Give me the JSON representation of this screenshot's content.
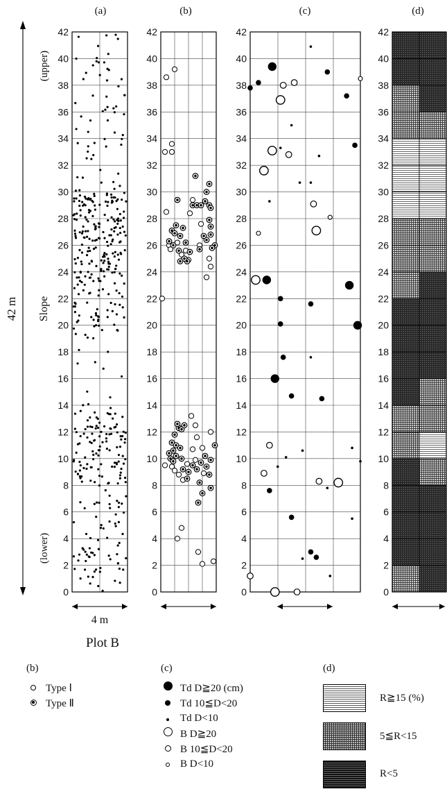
{
  "figure": {
    "panel_labels": [
      "(a)",
      "(b)",
      "(c)",
      "(d)"
    ],
    "axis_label": "Slope",
    "upper_label": "(upper)",
    "lower_label": "(lower)",
    "length_label": "42 m",
    "width_label": "4 m",
    "plot_label": "Plot B"
  },
  "legend_b": {
    "title": "(b)",
    "items": [
      {
        "symbol": "type-1",
        "label": "Type Ⅰ"
      },
      {
        "symbol": "type-2",
        "label": "Type Ⅱ"
      }
    ]
  },
  "legend_c": {
    "title": "(c)",
    "items": [
      {
        "symbol": "td-large",
        "label": "Td D≧20 (cm)"
      },
      {
        "symbol": "td-medium",
        "label": "Td 10≦D<20"
      },
      {
        "symbol": "td-small",
        "label": "Td D<10"
      },
      {
        "symbol": "b-large",
        "label": "B D≧20"
      },
      {
        "symbol": "b-medium",
        "label": "B 10≦D<20"
      },
      {
        "symbol": "b-small",
        "label": "B D<10"
      }
    ]
  },
  "legend_d": {
    "title": "(d)",
    "items": [
      {
        "pattern": "horizontal-lines",
        "label": "R≧15 (%)"
      },
      {
        "pattern": "fine-grid",
        "label": "5≦R<15"
      },
      {
        "pattern": "dense-dark",
        "label": "R<5"
      }
    ]
  },
  "chart_data": [
    {
      "panel": "(a)",
      "type": "scatter",
      "ylim": [
        0,
        42
      ],
      "xlim": [
        0,
        4
      ],
      "yticks": [
        "0",
        "2",
        "4",
        "6",
        "8",
        "10",
        "12",
        "14",
        "16",
        "18",
        "20",
        "22",
        "24",
        "26",
        "28",
        "30",
        "32",
        "34",
        "36",
        "38",
        "40",
        "42"
      ],
      "density_by_y_band": [
        {
          "y": [
            0,
            4
          ],
          "count": 40
        },
        {
          "y": [
            4,
            8
          ],
          "count": 30
        },
        {
          "y": [
            8,
            13.5
          ],
          "count": 110
        },
        {
          "y": [
            13.5,
            19
          ],
          "count": 12
        },
        {
          "y": [
            19,
            23.5
          ],
          "count": 60
        },
        {
          "y": [
            23.5,
            30
          ],
          "count": 180
        },
        {
          "y": [
            30,
            36
          ],
          "count": 30
        },
        {
          "y": [
            36,
            42
          ],
          "count": 30
        }
      ]
    },
    {
      "panel": "(b)",
      "type": "scatter",
      "ylim": [
        0,
        42
      ],
      "xlim": [
        0,
        4
      ],
      "yticks": [
        "0",
        "2",
        "4",
        "6",
        "8",
        "10",
        "12",
        "14",
        "16",
        "18",
        "20",
        "22",
        "24",
        "26",
        "28",
        "30",
        "32",
        "34",
        "36",
        "38",
        "40",
        "42"
      ],
      "series": [
        {
          "name": "Type Ⅰ",
          "points": [
            [
              0.4,
              38.6
            ],
            [
              1.0,
              39.2
            ],
            [
              0.3,
              33.0
            ],
            [
              0.8,
              33.6
            ],
            [
              0.8,
              33.0
            ],
            [
              0.4,
              28.5
            ],
            [
              0.1,
              22.0
            ],
            [
              3.3,
              23.6
            ],
            [
              3.6,
              24.4
            ],
            [
              2.1,
              28.4
            ],
            [
              2.3,
              29.4
            ],
            [
              1.5,
              25.3
            ],
            [
              0.6,
              26.0
            ],
            [
              1.8,
              25.6
            ],
            [
              2.9,
              27.6
            ],
            [
              2.0,
              24.9
            ],
            [
              0.3,
              9.5
            ],
            [
              0.8,
              9.4
            ],
            [
              2.2,
              13.2
            ],
            [
              2.5,
              12.5
            ],
            [
              1.0,
              9.1
            ],
            [
              1.2,
              4.0
            ],
            [
              1.5,
              4.8
            ],
            [
              2.7,
              3.0
            ],
            [
              3.0,
              2.1
            ],
            [
              3.8,
              2.3
            ],
            [
              2.3,
              10.7
            ],
            [
              3.6,
              12.0
            ],
            [
              3.0,
              10.8
            ],
            [
              3.1,
              8.9
            ],
            [
              2.6,
              11.6
            ],
            [
              2.5,
              9.9
            ],
            [
              1.9,
              9.6
            ],
            [
              1.3,
              8.8
            ],
            [
              1.6,
              8.4
            ],
            [
              0.7,
              25.7
            ],
            [
              1.2,
              26.2
            ],
            [
              3.5,
              25.0
            ],
            [
              2.8,
              26.0
            ]
          ]
        },
        {
          "name": "Type Ⅱ",
          "points": [
            [
              1.2,
              29.4
            ],
            [
              0.8,
              27.1
            ],
            [
              1.1,
              27.5
            ],
            [
              1.0,
              26.9
            ],
            [
              0.6,
              26.3
            ],
            [
              0.9,
              26.0
            ],
            [
              1.4,
              26.7
            ],
            [
              1.6,
              27.3
            ],
            [
              1.8,
              26.2
            ],
            [
              2.3,
              29.0
            ],
            [
              2.6,
              29.0
            ],
            [
              2.9,
              29.0
            ],
            [
              3.2,
              29.3
            ],
            [
              3.5,
              29.0
            ],
            [
              3.6,
              28.8
            ],
            [
              2.5,
              31.2
            ],
            [
              3.3,
              30.0
            ],
            [
              3.5,
              30.6
            ],
            [
              3.3,
              26.4
            ],
            [
              3.1,
              26.7
            ],
            [
              3.6,
              26.8
            ],
            [
              3.9,
              26.0
            ],
            [
              3.7,
              25.8
            ],
            [
              3.6,
              27.4
            ],
            [
              3.5,
              27.9
            ],
            [
              2.8,
              25.7
            ],
            [
              2.1,
              25.5
            ],
            [
              1.9,
              24.8
            ],
            [
              1.7,
              25.0
            ],
            [
              1.4,
              24.8
            ],
            [
              1.3,
              25.6
            ],
            [
              0.7,
              10.0
            ],
            [
              0.9,
              10.6
            ],
            [
              1.1,
              10.2
            ],
            [
              0.8,
              11.2
            ],
            [
              1.0,
              11.8
            ],
            [
              1.3,
              12.3
            ],
            [
              1.2,
              12.6
            ],
            [
              1.5,
              12.2
            ],
            [
              1.7,
              12.5
            ],
            [
              0.9,
              9.8
            ],
            [
              0.6,
              10.4
            ],
            [
              1.1,
              11.0
            ],
            [
              1.4,
              10.8
            ],
            [
              1.6,
              9.2
            ],
            [
              1.9,
              8.5
            ],
            [
              2.3,
              9.5
            ],
            [
              2.6,
              9.2
            ],
            [
              2.8,
              8.2
            ],
            [
              2.9,
              9.7
            ],
            [
              3.2,
              10.2
            ],
            [
              3.3,
              9.4
            ],
            [
              3.5,
              8.8
            ],
            [
              3.6,
              9.9
            ],
            [
              3.9,
              11.0
            ],
            [
              3.6,
              7.8
            ],
            [
              3.0,
              7.4
            ],
            [
              2.7,
              6.7
            ],
            [
              1.5,
              10.0
            ],
            [
              2.0,
              9.0
            ]
          ]
        }
      ]
    },
    {
      "panel": "(c)",
      "type": "scatter",
      "ylim": [
        0,
        42
      ],
      "xlim": [
        0,
        4
      ],
      "yticks": [
        "0",
        "2",
        "4",
        "6",
        "8",
        "10",
        "12",
        "14",
        "16",
        "18",
        "20",
        "22",
        "24",
        "26",
        "28",
        "30",
        "32",
        "34",
        "36",
        "38",
        "40",
        "42"
      ],
      "series": [
        {
          "name": "Td D≧20",
          "points": [
            [
              0.8,
              39.4
            ],
            [
              0.6,
              23.4
            ],
            [
              0.9,
              16.0
            ],
            [
              3.6,
              23.0
            ],
            [
              3.9,
              20.0
            ]
          ]
        },
        {
          "name": "Td 10≦D<20",
          "points": [
            [
              0.0,
              37.8
            ],
            [
              0.3,
              38.2
            ],
            [
              2.8,
              39.0
            ],
            [
              3.5,
              37.2
            ],
            [
              3.8,
              33.5
            ],
            [
              1.1,
              22.0
            ],
            [
              1.1,
              20.1
            ],
            [
              2.2,
              21.6
            ],
            [
              1.2,
              17.6
            ],
            [
              1.5,
              14.7
            ],
            [
              2.6,
              14.5
            ],
            [
              0.7,
              7.6
            ],
            [
              1.5,
              5.6
            ],
            [
              2.2,
              3.0
            ],
            [
              2.4,
              2.6
            ]
          ]
        },
        {
          "name": "Td D<10",
          "points": [
            [
              2.2,
              40.9
            ],
            [
              1.5,
              35.0
            ],
            [
              1.1,
              33.3
            ],
            [
              2.5,
              32.7
            ],
            [
              1.8,
              30.7
            ],
            [
              2.2,
              30.7
            ],
            [
              0.7,
              29.3
            ],
            [
              2.4,
              26.9
            ],
            [
              2.2,
              17.6
            ],
            [
              1.0,
              9.4
            ],
            [
              1.3,
              10.1
            ],
            [
              1.9,
              10.6
            ],
            [
              2.8,
              7.8
            ],
            [
              3.7,
              10.8
            ],
            [
              3.7,
              5.5
            ],
            [
              4.0,
              9.8
            ],
            [
              1.9,
              2.5
            ],
            [
              2.9,
              1.2
            ]
          ]
        },
        {
          "name": "B D≧20",
          "points": [
            [
              1.1,
              36.9
            ],
            [
              0.8,
              33.1
            ],
            [
              0.5,
              31.6
            ],
            [
              2.4,
              27.1
            ],
            [
              0.2,
              23.4
            ],
            [
              0.9,
              0.0
            ],
            [
              3.2,
              8.2
            ]
          ]
        },
        {
          "name": "B 10≦D<20",
          "points": [
            [
              1.2,
              38.0
            ],
            [
              1.6,
              38.2
            ],
            [
              1.4,
              32.8
            ],
            [
              2.3,
              29.1
            ],
            [
              0.5,
              8.9
            ],
            [
              0.7,
              11.0
            ],
            [
              2.5,
              8.3
            ],
            [
              0.0,
              1.2
            ],
            [
              1.7,
              0.0
            ]
          ]
        },
        {
          "name": "B D<10",
          "points": [
            [
              4.0,
              38.5
            ],
            [
              0.3,
              26.9
            ],
            [
              2.9,
              28.1
            ]
          ]
        }
      ]
    },
    {
      "panel": "(d)",
      "type": "heatmap",
      "ylim": [
        0,
        42
      ],
      "columns": 2,
      "cell_size_m": 2,
      "yticks": [
        "0",
        "2",
        "4",
        "6",
        "8",
        "10",
        "12",
        "14",
        "16",
        "18",
        "20",
        "22",
        "24",
        "26",
        "28",
        "30",
        "32",
        "34",
        "36",
        "38",
        "40",
        "42"
      ],
      "levels": [
        "R≧15 (%)",
        "5≦R<15",
        "R<5"
      ],
      "rows_bottom_to_top": [
        [
          "5≦R<15",
          "R<5"
        ],
        [
          "R<5",
          "R<5"
        ],
        [
          "R<5",
          "R<5"
        ],
        [
          "R<5",
          "R<5"
        ],
        [
          "R<5",
          "5≦R<15"
        ],
        [
          "5≦R<15",
          "R≧15 (%)"
        ],
        [
          "5≦R<15",
          "5≦R<15"
        ],
        [
          "R<5",
          "5≦R<15"
        ],
        [
          "R<5",
          "R<5"
        ],
        [
          "R<5",
          "R<5"
        ],
        [
          "R<5",
          "R<5"
        ],
        [
          "5≦R<15",
          "R<5"
        ],
        [
          "5≦R<15",
          "5≦R<15"
        ],
        [
          "5≦R<15",
          "5≦R<15"
        ],
        [
          "R≧15 (%)",
          "R≧15 (%)"
        ],
        [
          "R≧15 (%)",
          "R≧15 (%)"
        ],
        [
          "R≧15 (%)",
          "R≧15 (%)"
        ],
        [
          "5≦R<15",
          "5≦R<15"
        ],
        [
          "5≦R<15",
          "R<5"
        ],
        [
          "R<5",
          "R<5"
        ],
        [
          "R<5",
          "R<5"
        ]
      ]
    }
  ]
}
